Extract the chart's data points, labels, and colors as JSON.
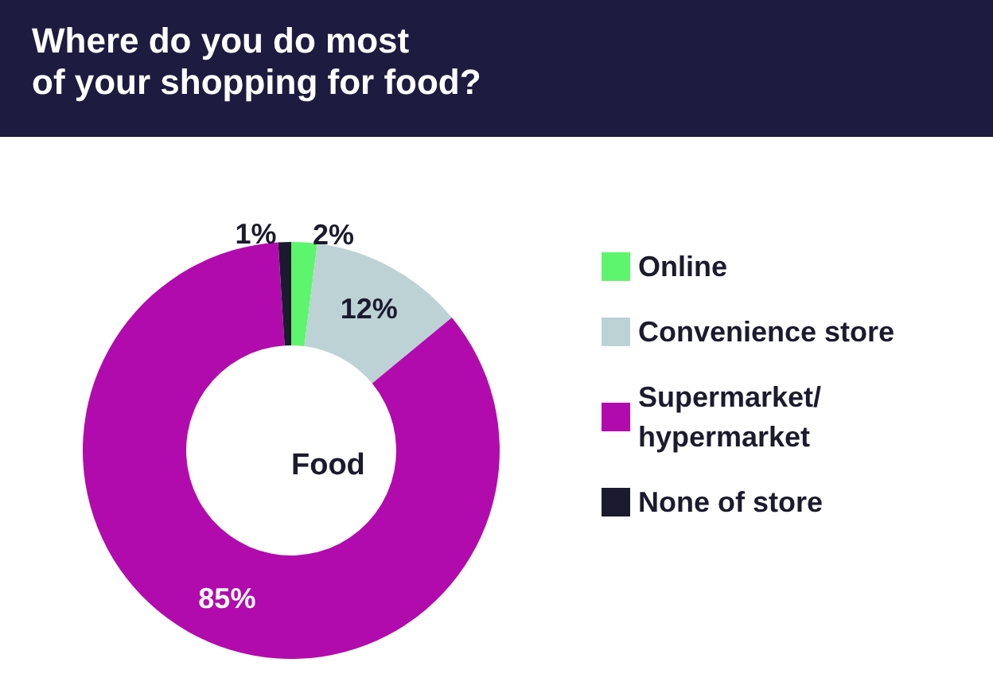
{
  "chart_data": {
    "type": "donut",
    "title": "Where do you do most\nof your shopping for food?",
    "categories": [
      "Online",
      "Convenience store",
      "Supermarket/hypermarket",
      "None of store"
    ],
    "values": [
      2,
      12,
      85,
      1
    ],
    "colors": [
      "#5ef56e",
      "#bdd2d5",
      "#b20bad",
      "#1b1a2e"
    ],
    "value_labels": [
      "2%",
      "12%",
      "85%",
      "1%"
    ],
    "legend": "right",
    "annotations": [
      "Food"
    ]
  }
}
